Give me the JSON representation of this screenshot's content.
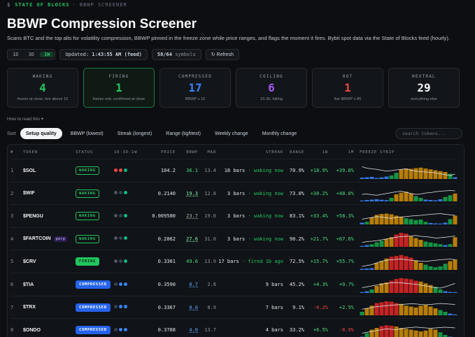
{
  "brand": {
    "name": "STATE OF BLOCKS",
    "section": "· BBWP SCREENER"
  },
  "header": {
    "title": "BBWP Compression Screener",
    "description": "Scans BTC and the top alts for volatility compression, BBWP pinned in the freeze zone while price ranges, and flags the moment it fires. Bybit spot data via the State of Blocks feed (hourly)."
  },
  "controls": {
    "timeframes": [
      "1D",
      "3D",
      "1W"
    ],
    "active_timeframe": 2,
    "updated_label": "Updated:",
    "updated_value": "1:43:55 AM (feed)",
    "symbols_count": "58/64",
    "symbols_label": "symbols",
    "refresh": "↻ Refresh"
  },
  "cards": [
    {
      "label": "WAKING",
      "value": 4,
      "note": "frozen at close, live above 15",
      "color": "#22c55e",
      "highlight": false
    },
    {
      "label": "FIRING",
      "value": 1,
      "note": "freeze exit, confirmed at close",
      "color": "#22c55e",
      "highlight": true
    },
    {
      "label": "COMPRESSED",
      "value": 17,
      "note": "BBWP ≤ 15",
      "color": "#3b82f6",
      "highlight": false
    },
    {
      "label": "COILING",
      "value": 6,
      "note": "15-30, falling",
      "color": "#a855f7",
      "highlight": false
    },
    {
      "label": "HOT",
      "value": 1,
      "note": "live BBWP ≥ 85",
      "color": "#ef4444",
      "highlight": false
    },
    {
      "label": "NEUTRAL",
      "value": 29,
      "note": "everything else",
      "color": "#f3f4f6",
      "highlight": false
    }
  ],
  "help": "How to read this ▾",
  "sort": {
    "label": "Sort",
    "options": [
      "Setup quality",
      "BBWP (lowest)",
      "Streak (longest)",
      "Range (tightest)",
      "Weekly change",
      "Monthly change"
    ],
    "active": 0,
    "search_placeholder": "search tokens..."
  },
  "table": {
    "columns": [
      "#",
      "TOKEN",
      "STATUS",
      "1D·3D·1W",
      "PRICE",
      "BBWP",
      "MA8",
      "STREAK",
      "RANGE",
      "1W",
      "1M",
      "FREEZE STRIP"
    ],
    "strip_ylim": [
      0,
      100
    ],
    "strip_levels": [
      {
        "below": 15,
        "color": "#3b82f6"
      },
      {
        "below": 40,
        "color": "#16a34a"
      },
      {
        "below": 70,
        "color": "#ca8a04"
      },
      {
        "color": "#dc2626"
      }
    ],
    "status_styles": {
      "WAKING": {
        "bg": "transparent",
        "fg": "#22c55e",
        "border": "#22c55e"
      },
      "FIRING": {
        "bg": "#22c55e",
        "fg": "#062b14",
        "border": "#22c55e"
      },
      "COMPRESSED": {
        "bg": "#2563eb",
        "fg": "#ffffff",
        "border": "#2563eb"
      }
    },
    "rows": [
      {
        "rank": 1,
        "token": "$SOL",
        "status": "WAKING",
        "dots": [
          "#ef4444",
          "#ef4444",
          "#10b981"
        ],
        "price": "104.2",
        "bbwp": "36.1",
        "bbwp_color": "#4ade80",
        "bbwp_underline": false,
        "ma8": "13.4",
        "streak": "18 bars",
        "streak_note": "· waking now",
        "range": "70.9%",
        "w1": "+18.9%",
        "m1": "+39.8%",
        "strip": [
          8,
          10,
          12,
          6,
          9,
          14,
          20,
          35,
          55,
          60,
          58,
          62,
          65,
          60,
          55,
          50,
          45,
          40,
          30,
          10
        ],
        "strip_line": [
          70,
          62,
          58,
          55,
          50,
          45,
          48,
          52,
          55,
          58,
          50,
          45,
          42,
          40,
          38,
          35,
          30,
          25,
          20,
          28
        ]
      },
      {
        "rank": 2,
        "token": "$WIF",
        "status": "WAKING",
        "dots": [
          "#4b5563",
          "#374151",
          "#10b981"
        ],
        "price": "0.2140",
        "bbwp": "19.3",
        "bbwp_color": "#86efac",
        "bbwp_underline": true,
        "ma8": "12.8",
        "streak": "3 bars",
        "streak_note": "· waking now",
        "range": "73.0%",
        "w1": "+30.2%",
        "m1": "+48.0%",
        "strip": [
          5,
          8,
          10,
          12,
          9,
          7,
          20,
          40,
          50,
          55,
          45,
          30,
          20,
          10,
          8,
          6,
          12,
          25,
          35,
          45
        ],
        "strip_line": [
          40,
          42,
          38,
          35,
          40,
          45,
          50,
          55,
          58,
          52,
          45,
          40,
          42,
          48,
          50,
          55,
          58,
          60,
          62,
          60
        ]
      },
      {
        "rank": 3,
        "token": "$PENGU",
        "status": "WAKING",
        "dots": [
          "#4b5563",
          "#374151",
          "#10b981"
        ],
        "price": "0.009580",
        "bbwp": "23.7",
        "bbwp_color": "#a3b8a8",
        "bbwp_underline": true,
        "ma8": "19.0",
        "streak": "3 bars",
        "streak_note": "· waking now",
        "range": "83.1%",
        "w1": "+33.4%",
        "m1": "+58.3%",
        "strip": [
          10,
          15,
          40,
          55,
          60,
          62,
          58,
          50,
          45,
          35,
          30,
          25,
          28,
          15,
          8,
          6,
          5,
          10,
          30,
          50
        ],
        "strip_line": [
          30,
          35,
          40,
          45,
          42,
          38,
          35,
          40,
          42,
          45,
          48,
          50,
          52,
          55,
          58,
          60,
          62,
          58,
          55,
          52
        ]
      },
      {
        "rank": 4,
        "token": "$FARTCOIN",
        "tag": "perp",
        "status": "WAKING",
        "dots": [
          "#4b5563",
          "#374151",
          "#10b981"
        ],
        "price": "0.2062",
        "bbwp": "27.6",
        "bbwp_color": "#86efac",
        "bbwp_underline": true,
        "ma8": "31.0",
        "streak": "3 bars",
        "streak_note": "· waking now",
        "range": "90.2%",
        "w1": "+21.7%",
        "m1": "+67.6%",
        "strip": [
          5,
          10,
          15,
          25,
          35,
          45,
          55,
          70,
          80,
          75,
          60,
          50,
          40,
          30,
          25,
          20,
          15,
          10,
          15,
          55
        ],
        "strip_line": [
          25,
          30,
          32,
          35,
          40,
          45,
          50,
          55,
          58,
          60,
          62,
          65,
          60,
          58,
          55,
          50,
          52,
          55,
          58,
          62
        ]
      },
      {
        "rank": 5,
        "token": "$CRV",
        "status": "FIRING",
        "dots": [
          "#4b5563",
          "#374151",
          "#10b981"
        ],
        "price": "0.3301",
        "bbwp": "49.6",
        "bbwp_color": "#4ade80",
        "bbwp_underline": false,
        "ma8": "13.9",
        "streak": "17 bars",
        "streak_note": "· fired 1b ago",
        "range": "72.5%",
        "w1": "+15.7%",
        "m1": "+55.7%",
        "strip": [
          6,
          8,
          10,
          40,
          50,
          65,
          75,
          80,
          85,
          78,
          70,
          55,
          40,
          30,
          20,
          15,
          20,
          35,
          50,
          60
        ],
        "strip_line": [
          20,
          25,
          30,
          40,
          50,
          55,
          58,
          60,
          62,
          58,
          55,
          52,
          50,
          48,
          52,
          55,
          58,
          60,
          62,
          58
        ]
      },
      {
        "rank": 6,
        "token": "$TIA",
        "status": "COMPRESSED",
        "dots": [
          "#374151",
          "#3b82f6",
          "#3b82f6"
        ],
        "price": "0.3590",
        "bbwp": "0.7",
        "bbwp_color": "#60a5fa",
        "bbwp_underline": true,
        "ma8": "2.8",
        "streak": "9 bars",
        "range": "45.2%",
        "w1": "+4.3%",
        "m1": "+9.7%",
        "strip": [
          5,
          10,
          20,
          40,
          55,
          60,
          70,
          80,
          85,
          82,
          78,
          70,
          65,
          55,
          45,
          35,
          20,
          10,
          6,
          5
        ],
        "strip_line": [
          30,
          35,
          40,
          45,
          50,
          55,
          58,
          60,
          58,
          55,
          52,
          50,
          45,
          40,
          35,
          30,
          28,
          35,
          45,
          55
        ]
      },
      {
        "rank": 7,
        "token": "$TRX",
        "status": "COMPRESSED",
        "dots": [
          "#374151",
          "#3b82f6",
          "#3b82f6"
        ],
        "price": "0.3367",
        "bbwp": "0.0",
        "bbwp_color": "#60a5fa",
        "bbwp_underline": true,
        "ma8": "8.9",
        "streak": "7 bars",
        "range": "9.1%",
        "w1": "-0.2%",
        "m1": "+2.5%",
        "strip": [
          20,
          40,
          55,
          70,
          75,
          80,
          78,
          70,
          65,
          55,
          50,
          45,
          55,
          60,
          50,
          40,
          30,
          20,
          10,
          5
        ],
        "strip_line": [
          35,
          40,
          45,
          50,
          52,
          55,
          58,
          60,
          62,
          64,
          66,
          65,
          62,
          60,
          62,
          65,
          68,
          66,
          64,
          62
        ]
      },
      {
        "rank": 8,
        "token": "$ONDO",
        "status": "COMPRESSED",
        "dots": [
          "#374151",
          "#3b82f6",
          "#3b82f6"
        ],
        "price": "0.3788",
        "bbwp": "4.0",
        "bbwp_color": "#60a5fa",
        "bbwp_underline": true,
        "ma8": "13.7",
        "streak": "4 bars",
        "range": "33.2%",
        "w1": "+6.5%",
        "m1": "-8.9%",
        "strip": [
          10,
          30,
          50,
          60,
          70,
          75,
          72,
          68,
          60,
          55,
          50,
          45,
          40,
          45,
          55,
          50,
          35,
          20,
          10,
          6
        ],
        "strip_line": [
          30,
          35,
          40,
          45,
          50,
          55,
          52,
          50,
          55,
          60,
          62,
          65,
          62,
          60,
          58,
          60,
          62,
          64,
          62,
          60
        ]
      }
    ]
  }
}
